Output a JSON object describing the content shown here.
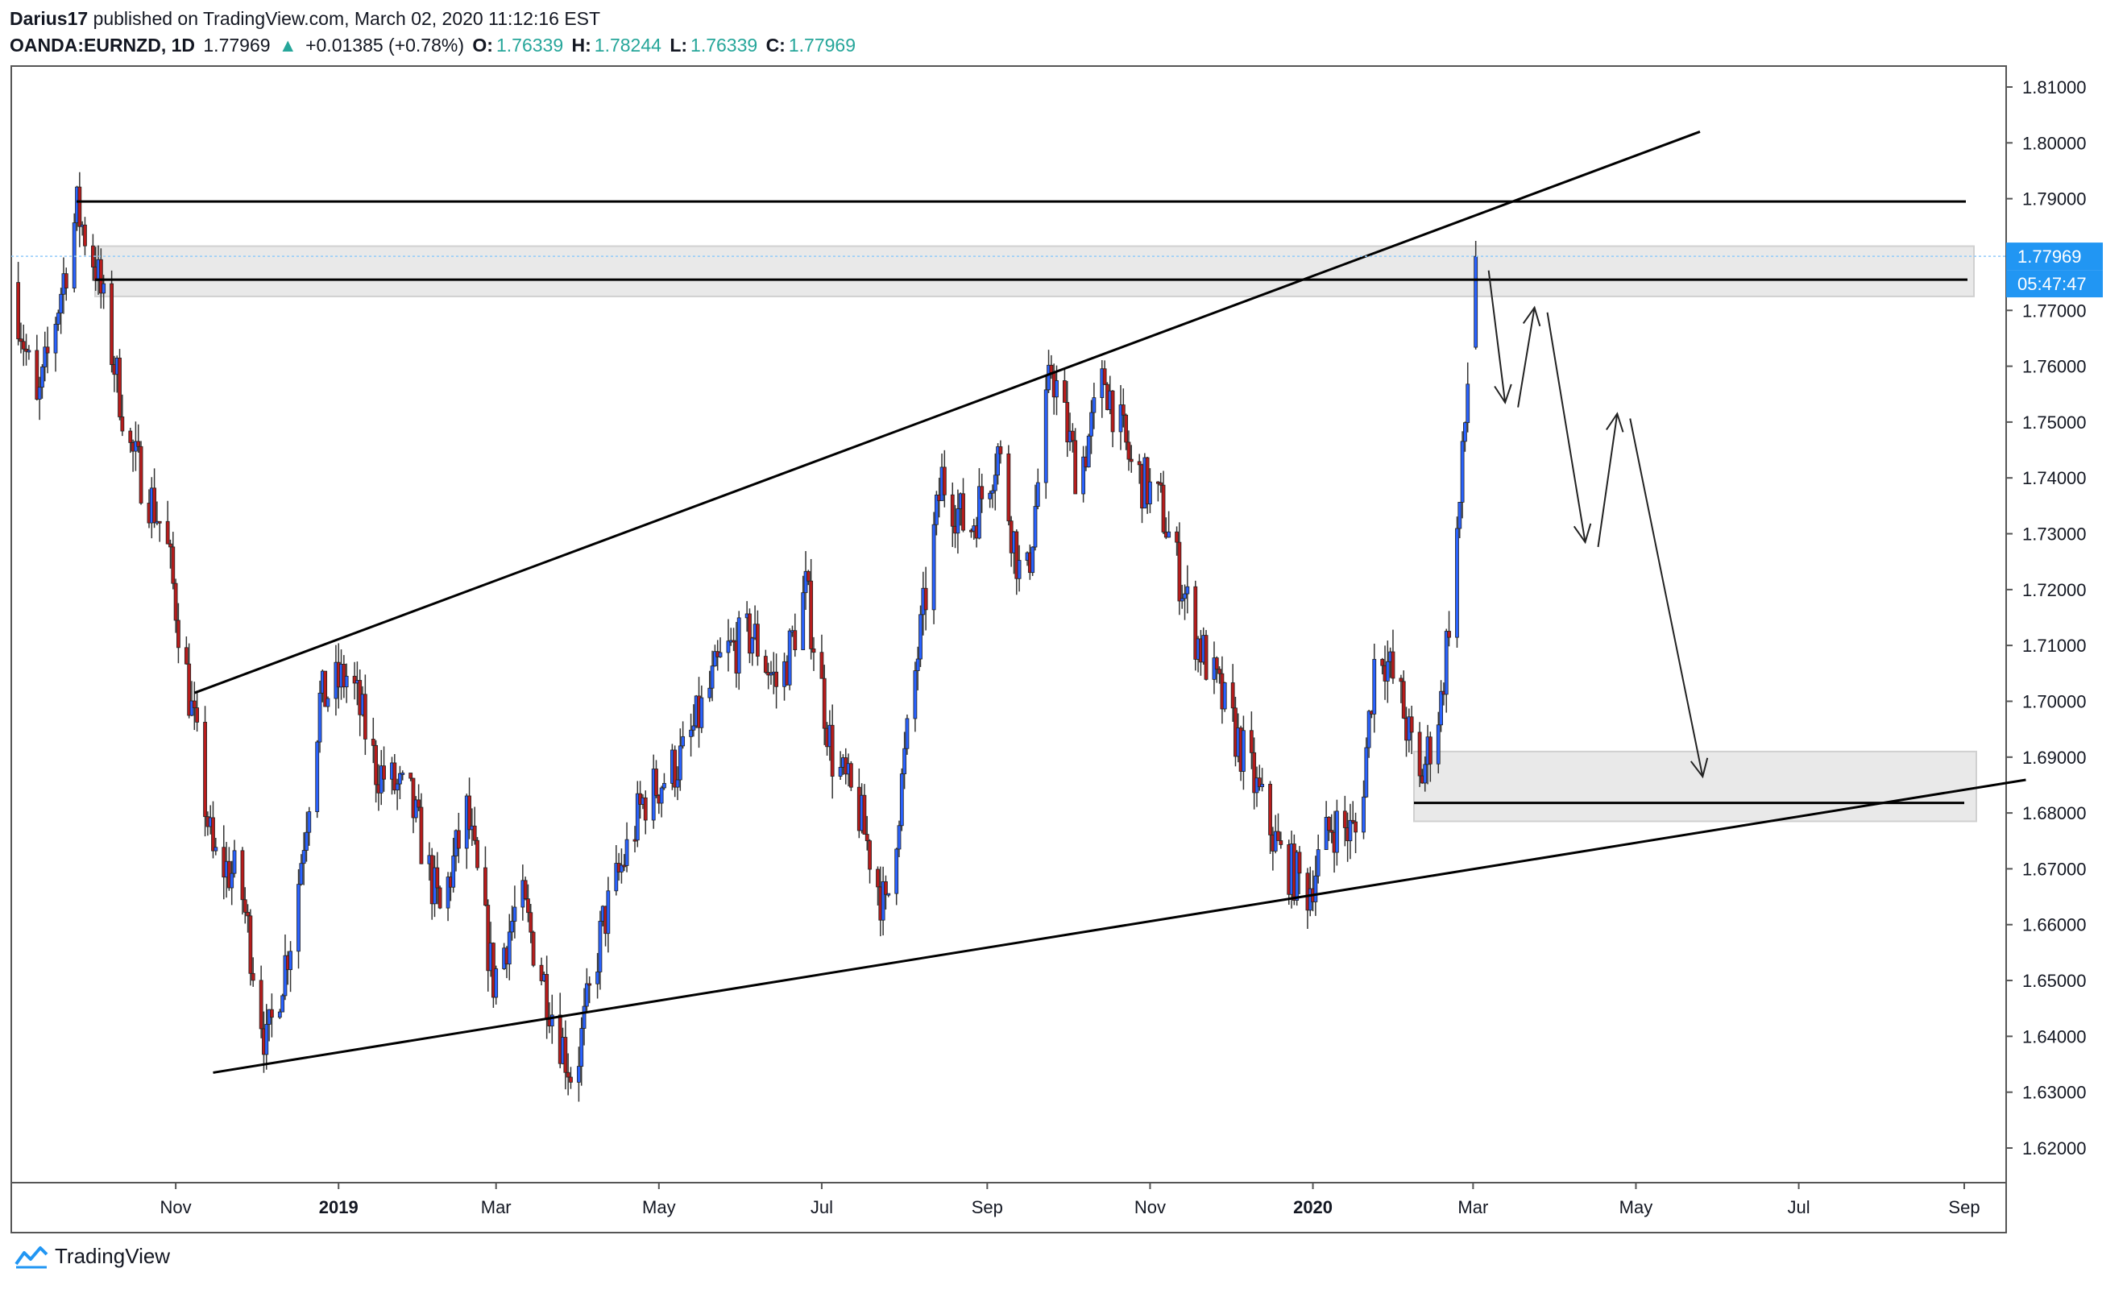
{
  "header": {
    "author": "Darius17",
    "published_text": "published on TradingView.com, March 02, 2020 11:12:16 EST",
    "symbol": "OANDA:EURNZD, 1D",
    "price": "1.77969",
    "change_arrow": "▲",
    "change": "+0.01385 (+0.78%)",
    "o_label": "O:",
    "o_value": "1.76339",
    "h_label": "H:",
    "h_value": "1.78244",
    "l_label": "L:",
    "l_value": "1.76339",
    "c_label": "C:",
    "c_value": "1.77969"
  },
  "footer": {
    "brand": "TradingView"
  },
  "colors": {
    "up": "#26a69a",
    "down": "#ef5350",
    "candle_up": "#2962ff",
    "candle_down": "#b71c1c",
    "zone": "#e6e6e6",
    "price_tag": "#2196f3",
    "line": "#000000"
  },
  "chart_data": {
    "type": "candlestick",
    "ylim": [
      1.615,
      1.815
    ],
    "y_ticks": [
      "1.81000",
      "1.80000",
      "1.79000",
      "1.78000",
      "1.77000",
      "1.76000",
      "1.75000",
      "1.74000",
      "1.73000",
      "1.72000",
      "1.71000",
      "1.70000",
      "1.69000",
      "1.68000",
      "1.67000",
      "1.66000",
      "1.65000",
      "1.64000",
      "1.63000",
      "1.62000"
    ],
    "x_ticks": [
      {
        "label": "Nov",
        "bold": false,
        "date": "2018-11-01"
      },
      {
        "label": "2019",
        "bold": true,
        "date": "2019-01-01"
      },
      {
        "label": "Mar",
        "bold": false,
        "date": "2019-03-01"
      },
      {
        "label": "May",
        "bold": false,
        "date": "2019-05-01"
      },
      {
        "label": "Jul",
        "bold": false,
        "date": "2019-07-01"
      },
      {
        "label": "Sep",
        "bold": false,
        "date": "2019-09-01"
      },
      {
        "label": "Nov",
        "bold": false,
        "date": "2019-11-01"
      },
      {
        "label": "2020",
        "bold": true,
        "date": "2020-01-01"
      },
      {
        "label": "Mar",
        "bold": false,
        "date": "2020-03-01"
      },
      {
        "label": "May",
        "bold": false,
        "date": "2020-05-01"
      },
      {
        "label": "Jul",
        "bold": false,
        "date": "2020-07-01"
      },
      {
        "label": "Sep",
        "bold": false,
        "date": "2020-09-01"
      }
    ],
    "current_price_label": "1.77969",
    "countdown_label": "05:47:47",
    "price_path": [
      [
        "2018-09-01",
        1.775
      ],
      [
        "2018-09-10",
        1.752
      ],
      [
        "2018-09-25",
        1.788
      ],
      [
        "2018-10-02",
        1.778
      ],
      [
        "2018-10-15",
        1.745
      ],
      [
        "2018-10-28",
        1.73
      ],
      [
        "2018-11-08",
        1.695
      ],
      [
        "2018-11-15",
        1.672
      ],
      [
        "2018-11-25",
        1.668
      ],
      [
        "2018-12-05",
        1.638
      ],
      [
        "2018-12-15",
        1.66
      ],
      [
        "2018-12-25",
        1.7
      ],
      [
        "2019-01-05",
        1.705
      ],
      [
        "2019-01-15",
        1.688
      ],
      [
        "2019-01-28",
        1.682
      ],
      [
        "2019-02-08",
        1.662
      ],
      [
        "2019-02-18",
        1.68
      ],
      [
        "2019-02-28",
        1.65
      ],
      [
        "2019-03-10",
        1.665
      ],
      [
        "2019-03-20",
        1.648
      ],
      [
        "2019-03-30",
        1.632
      ],
      [
        "2019-04-10",
        1.66
      ],
      [
        "2019-04-25",
        1.682
      ],
      [
        "2019-05-10",
        1.69
      ],
      [
        "2019-05-25",
        1.708
      ],
      [
        "2019-06-05",
        1.712
      ],
      [
        "2019-06-15",
        1.702
      ],
      [
        "2019-06-25",
        1.72
      ],
      [
        "2019-07-05",
        1.69
      ],
      [
        "2019-07-15",
        1.68
      ],
      [
        "2019-07-25",
        1.662
      ],
      [
        "2019-08-05",
        1.705
      ],
      [
        "2019-08-15",
        1.74
      ],
      [
        "2019-08-25",
        1.73
      ],
      [
        "2019-09-05",
        1.745
      ],
      [
        "2019-09-15",
        1.718
      ],
      [
        "2019-09-25",
        1.76
      ],
      [
        "2019-10-05",
        1.74
      ],
      [
        "2019-10-15",
        1.758
      ],
      [
        "2019-10-25",
        1.742
      ],
      [
        "2019-11-05",
        1.735
      ],
      [
        "2019-11-18",
        1.712
      ],
      [
        "2019-11-28",
        1.7
      ],
      [
        "2019-12-08",
        1.688
      ],
      [
        "2019-12-20",
        1.672
      ],
      [
        "2019-12-30",
        1.666
      ],
      [
        "2020-01-08",
        1.678
      ],
      [
        "2020-01-18",
        1.676
      ],
      [
        "2020-01-25",
        1.712
      ],
      [
        "2020-02-03",
        1.7
      ],
      [
        "2020-02-10",
        1.685
      ],
      [
        "2020-02-18",
        1.7
      ],
      [
        "2020-02-25",
        1.735
      ],
      [
        "2020-03-02",
        1.7797
      ]
    ],
    "annotations": {
      "resistance_lines": [
        1.7895,
        1.7755
      ],
      "resistance_zone": [
        1.7725,
        1.7815
      ],
      "support_zone": [
        1.6785,
        1.691
      ],
      "support_line": 1.6818,
      "upper_trendline": [
        [
          "2018-11-08",
          1.7015
        ],
        [
          "2020-05-25",
          1.802
        ]
      ],
      "lower_trendline": [
        [
          "2018-11-15",
          1.6335
        ],
        [
          "2020-09-12",
          1.6855
        ]
      ],
      "projection_path": [
        [
          "2020-03-02",
          1.778
        ],
        [
          "2020-03-13",
          1.7535
        ],
        [
          "2020-03-24",
          1.7705
        ],
        [
          "2020-04-12",
          1.7285
        ],
        [
          "2020-04-24",
          1.7515
        ],
        [
          "2020-05-26",
          1.6865
        ]
      ]
    }
  }
}
